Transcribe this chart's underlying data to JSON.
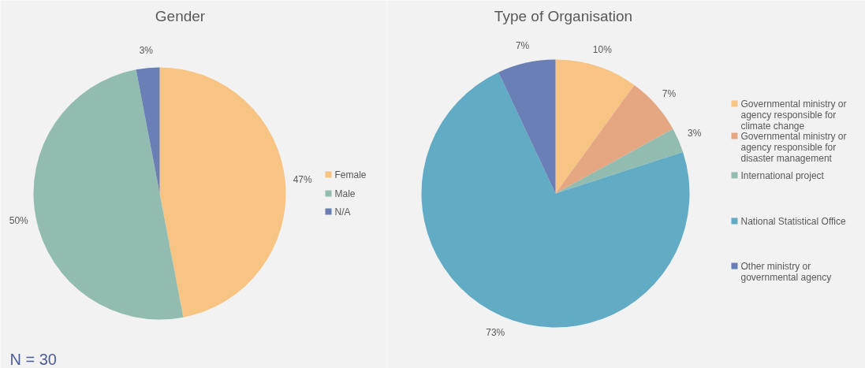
{
  "chart_data": [
    {
      "type": "pie",
      "title": "Gender",
      "categories": [
        "Female",
        "Male",
        "N/A"
      ],
      "values": [
        47,
        50,
        3
      ],
      "value_labels": [
        "47%",
        "50%",
        "3%"
      ],
      "colors": [
        "#f8c483",
        "#93bcb1",
        "#6a7fb5"
      ],
      "legend": "right",
      "annotations": [
        "N = 30"
      ]
    },
    {
      "type": "pie",
      "title": "Type of Organisation",
      "categories": [
        "Governmental ministry or agency responsible for climate change",
        "Governmental ministry or agency responsible for disaster management",
        "International project",
        "National Statistical Office",
        "Other ministry or governmental agency"
      ],
      "values": [
        10,
        7,
        3,
        73,
        7
      ],
      "value_labels": [
        "10%",
        "7%",
        "3%",
        "73%",
        "7%"
      ],
      "colors": [
        "#f8c483",
        "#e5a682",
        "#93bcb1",
        "#62abc4",
        "#6a7fb5"
      ],
      "legend": "right"
    }
  ]
}
